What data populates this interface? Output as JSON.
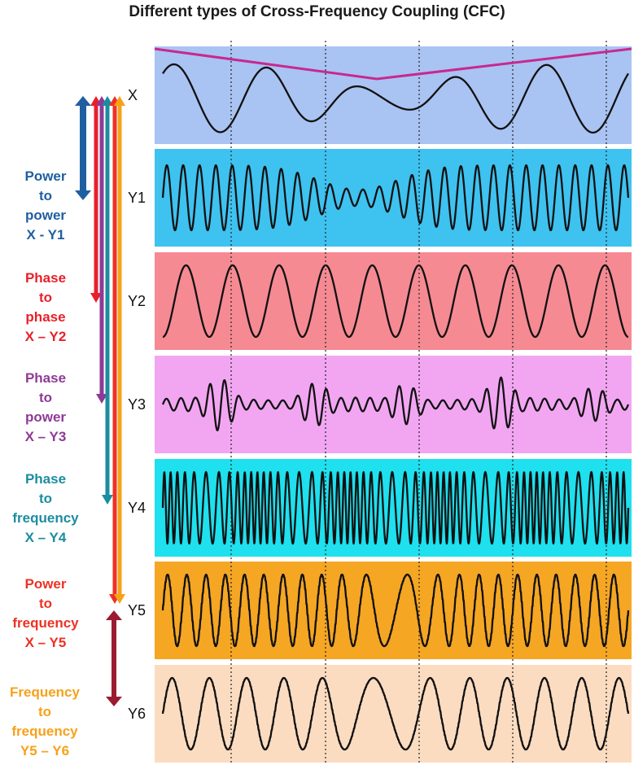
{
  "title": "Different types of Cross-Frequency Coupling (CFC)",
  "signals": [
    {
      "label": "X",
      "color": "#a9c3f2"
    },
    {
      "label": "Y1",
      "color": "#3ec2f0"
    },
    {
      "label": "Y2",
      "color": "#f58a93"
    },
    {
      "label": "Y3",
      "color": "#f2a6f2"
    },
    {
      "label": "Y4",
      "color": "#1ee0ee"
    },
    {
      "label": "Y5",
      "color": "#f5a623"
    },
    {
      "label": "Y6",
      "color": "#fcdcc0"
    }
  ],
  "couplings": [
    {
      "lines": [
        "Power",
        "to",
        "power",
        "X - Y1"
      ],
      "color": "#1f5fa0"
    },
    {
      "lines": [
        "Phase",
        "to",
        "phase",
        "X – Y2"
      ],
      "color": "#e8202a"
    },
    {
      "lines": [
        "Phase",
        "to",
        "power",
        "X – Y3"
      ],
      "color": "#8e3a96"
    },
    {
      "lines": [
        "Phase",
        "to",
        "frequency",
        "X – Y4"
      ],
      "color": "#1b8da0"
    },
    {
      "lines": [
        "Power",
        "to",
        "frequency",
        "X – Y5"
      ],
      "color": "#ee3124"
    },
    {
      "lines": [
        "Frequency",
        "to",
        "frequency",
        "Y5 – Y6"
      ],
      "color": "#f7a11a"
    }
  ],
  "colors": {
    "envelope": "#c8288f",
    "y5_y6_arrow": "#9b1b30",
    "wave": "#111111",
    "dotted_line": "#222222"
  }
}
